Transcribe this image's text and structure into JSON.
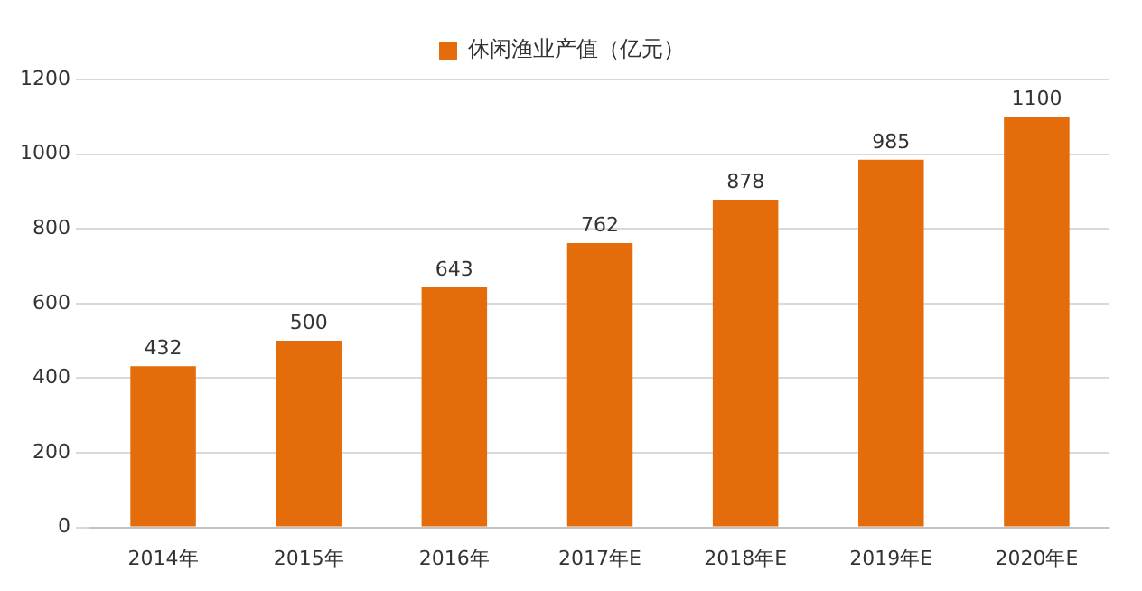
{
  "chart_data": {
    "type": "bar",
    "categories": [
      "2014年",
      "2015年",
      "2016年",
      "2017年E",
      "2018年E",
      "2019年E",
      "2020年E"
    ],
    "series": [
      {
        "name": "休闲渔业产值（亿元）",
        "color": "#e46c0a",
        "values": [
          432,
          500,
          643,
          762,
          878,
          985,
          1100
        ]
      }
    ],
    "ylim": [
      0,
      1200
    ],
    "yticks": [
      0,
      200,
      400,
      600,
      800,
      1000,
      1200
    ],
    "grid": "y",
    "legend": "top",
    "data_labels": true
  }
}
